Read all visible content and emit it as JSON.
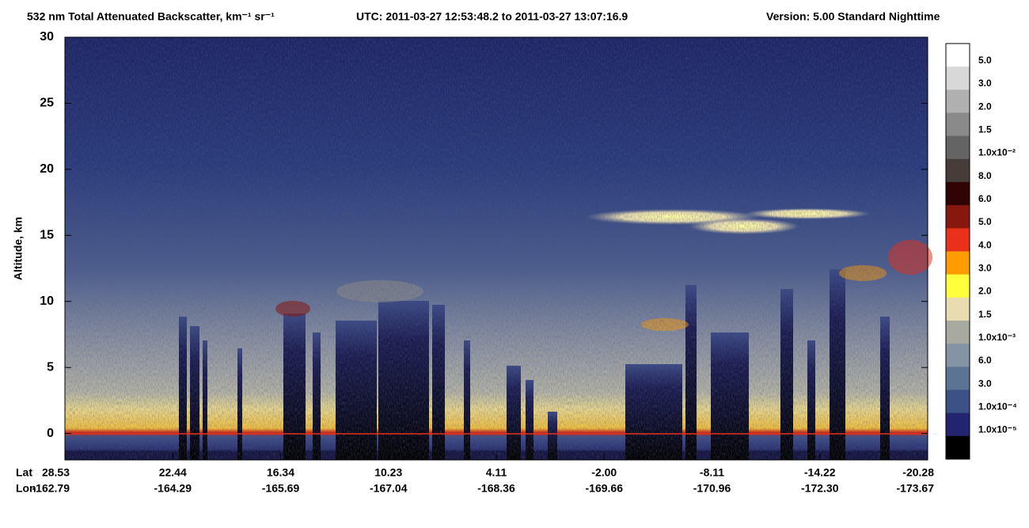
{
  "chart_data": {
    "type": "curtain",
    "title": "532 nm Total Attenuated Backscatter, km⁻¹ sr⁻¹",
    "time_range": "UTC:  2011-03-27 12:53:48.2  to  2011-03-27 13:07:16.9",
    "version": "Version: 5.00  Standard  Nighttime",
    "ylabel": "Altitude, km",
    "ylim": [
      -2,
      30
    ],
    "yticks": [
      0,
      5,
      10,
      15,
      20,
      25,
      30
    ],
    "x_row_labels": [
      "Lat",
      "Lon"
    ],
    "xticks": [
      {
        "lat": "28.53",
        "lon": "-162.79"
      },
      {
        "lat": "22.44",
        "lon": "-164.29"
      },
      {
        "lat": "16.34",
        "lon": "-165.69"
      },
      {
        "lat": "10.23",
        "lon": "-167.04"
      },
      {
        "lat": "4.11",
        "lon": "-168.36"
      },
      {
        "lat": "-2.00",
        "lon": "-169.66"
      },
      {
        "lat": "-8.11",
        "lon": "-170.96"
      },
      {
        "lat": "-14.22",
        "lon": "-172.30"
      },
      {
        "lat": "-20.28",
        "lon": "-173.67"
      }
    ],
    "colorbar": {
      "labels": [
        "5.0",
        "3.0",
        "2.0",
        "1.5",
        "1.0x10⁻²",
        "8.0",
        "6.0",
        "5.0",
        "4.0",
        "3.0",
        "2.0",
        "1.5",
        "1.0x10⁻³",
        "6.0",
        "3.0",
        "1.0x10⁻⁴",
        "1.0x10⁻⁵"
      ],
      "colors": [
        "#ffffff",
        "#d8d8d8",
        "#b0b0b0",
        "#8a8a8a",
        "#646464",
        "#463c3a",
        "#300404",
        "#861810",
        "#e8301a",
        "#ff9c00",
        "#ffff3c",
        "#e8dcb0",
        "#a8aaa0",
        "#8494a4",
        "#5c7494",
        "#3c5286",
        "#222470",
        "#000000"
      ]
    }
  }
}
